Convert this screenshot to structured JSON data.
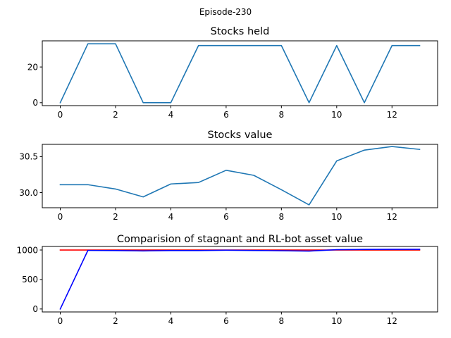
{
  "figure": {
    "suptitle": "Episode-230"
  },
  "chart_data": [
    {
      "type": "line",
      "title": "Stocks held",
      "xlabel": "",
      "ylabel": "",
      "x": [
        0,
        1,
        2,
        3,
        4,
        5,
        6,
        7,
        8,
        9,
        10,
        11,
        12,
        13
      ],
      "xticks": [
        0,
        2,
        4,
        6,
        8,
        10,
        12
      ],
      "xtick_labels": [
        "0",
        "2",
        "4",
        "6",
        "8",
        "10",
        "12"
      ],
      "xlim": [
        -0.65,
        13.65
      ],
      "yticks": [
        0,
        20
      ],
      "ytick_labels": [
        "0",
        "20"
      ],
      "ylim": [
        -1.65,
        34.65
      ],
      "grid": false,
      "series": [
        {
          "color": "#1f77b4",
          "values": [
            0,
            33,
            33,
            0,
            0,
            32,
            32,
            32,
            32,
            0,
            32,
            0,
            32,
            32
          ]
        }
      ]
    },
    {
      "type": "line",
      "title": "Stocks value",
      "xlabel": "",
      "ylabel": "",
      "x": [
        0,
        1,
        2,
        3,
        4,
        5,
        6,
        7,
        8,
        9,
        10,
        11,
        12,
        13
      ],
      "xticks": [
        0,
        2,
        4,
        6,
        8,
        10,
        12
      ],
      "xtick_labels": [
        "0",
        "2",
        "4",
        "6",
        "8",
        "10",
        "12"
      ],
      "xlim": [
        -0.65,
        13.65
      ],
      "yticks": [
        30.0,
        30.5
      ],
      "ytick_labels": [
        "30.0",
        "30.5"
      ],
      "ylim": [
        29.79,
        30.67
      ],
      "grid": false,
      "series": [
        {
          "color": "#1f77b4",
          "values": [
            30.11,
            30.11,
            30.05,
            29.94,
            30.12,
            30.14,
            30.31,
            30.24,
            30.04,
            29.83,
            30.44,
            30.59,
            30.64,
            30.6
          ]
        }
      ]
    },
    {
      "type": "line",
      "title": "Comparision of stagnant and RL-bot asset value",
      "xlabel": "",
      "ylabel": "",
      "x": [
        0,
        1,
        2,
        3,
        4,
        5,
        6,
        7,
        8,
        9,
        10,
        11,
        12,
        13
      ],
      "xticks": [
        0,
        2,
        4,
        6,
        8,
        10,
        12
      ],
      "xtick_labels": [
        "0",
        "2",
        "4",
        "6",
        "8",
        "10",
        "12"
      ],
      "xlim": [
        -0.65,
        13.65
      ],
      "yticks": [
        0,
        500,
        1000
      ],
      "ytick_labels": [
        "0",
        "500",
        "1000"
      ],
      "ylim": [
        -50,
        1060
      ],
      "grid": false,
      "series": [
        {
          "color": "#ff0000",
          "values": [
            1000,
            1000,
            1000,
            1000,
            1000,
            1000,
            1000,
            1000,
            1000,
            1000,
            1000,
            1000,
            1000,
            1000
          ]
        },
        {
          "color": "#0000ff",
          "values": [
            0,
            993,
            990,
            985,
            990,
            990,
            996,
            992,
            988,
            982,
            1005,
            1010,
            1012,
            1012
          ]
        }
      ]
    }
  ]
}
